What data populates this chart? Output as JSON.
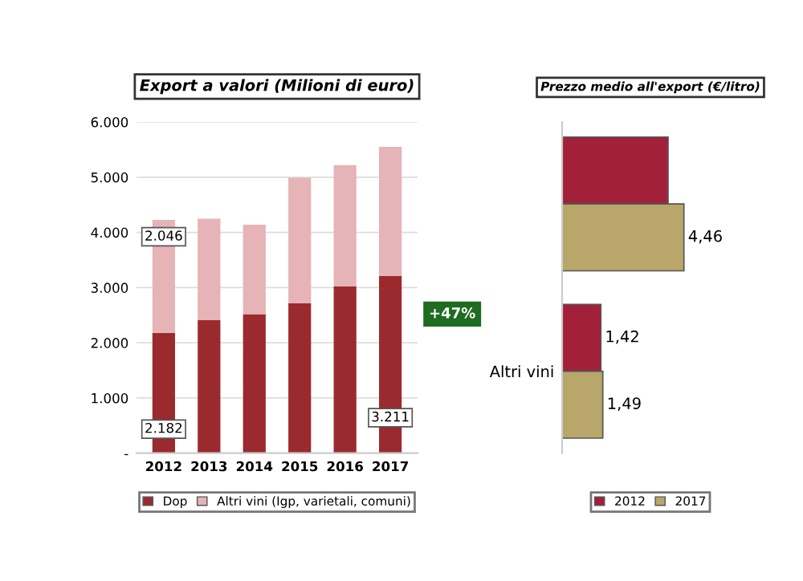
{
  "chart_data": [
    {
      "type": "bar",
      "title": "Export a valori (Milioni di euro)",
      "stacked": true,
      "categories": [
        "2012",
        "2013",
        "2014",
        "2015",
        "2016",
        "2017"
      ],
      "series": [
        {
          "name": "Dop",
          "color": "#9b2a2e",
          "values": [
            2182,
            2410,
            2520,
            2720,
            3020,
            3211
          ],
          "value_labels": [
            "2.182",
            null,
            null,
            null,
            null,
            "3.211"
          ]
        },
        {
          "name": "Altri vini (Igp, varietali, comuni)",
          "color": "#e6b3b6",
          "values": [
            2046,
            1840,
            1620,
            2270,
            2200,
            2340
          ],
          "value_labels": [
            "2.046",
            null,
            null,
            null,
            null,
            null
          ]
        }
      ],
      "ylim": [
        0,
        6000
      ],
      "yticks": [
        {
          "value": 0,
          "label": "-"
        },
        {
          "value": 1000,
          "label": "1.000"
        },
        {
          "value": 2000,
          "label": "2.000"
        },
        {
          "value": 3000,
          "label": "3.000"
        },
        {
          "value": 4000,
          "label": "4.000"
        },
        {
          "value": 5000,
          "label": "5.000"
        },
        {
          "value": 6000,
          "label": "6.000"
        }
      ],
      "grid": "y",
      "legend": "bottom",
      "annotations": [
        "+47%"
      ]
    },
    {
      "type": "bar",
      "title": "Prezzo medio all'export (€/litro)",
      "orientation": "horizontal",
      "categories": [
        null,
        "Altri vini"
      ],
      "series": [
        {
          "name": "2012",
          "color": "#a3203a",
          "values": [
            3.88,
            1.42
          ],
          "value_labels": [
            null,
            "1,42"
          ]
        },
        {
          "name": "2017",
          "color": "#b8a66a",
          "values": [
            4.46,
            1.49
          ],
          "value_labels": [
            "4,46",
            "1,49"
          ]
        }
      ],
      "legend": "bottom",
      "tick_labels": "y"
    }
  ]
}
